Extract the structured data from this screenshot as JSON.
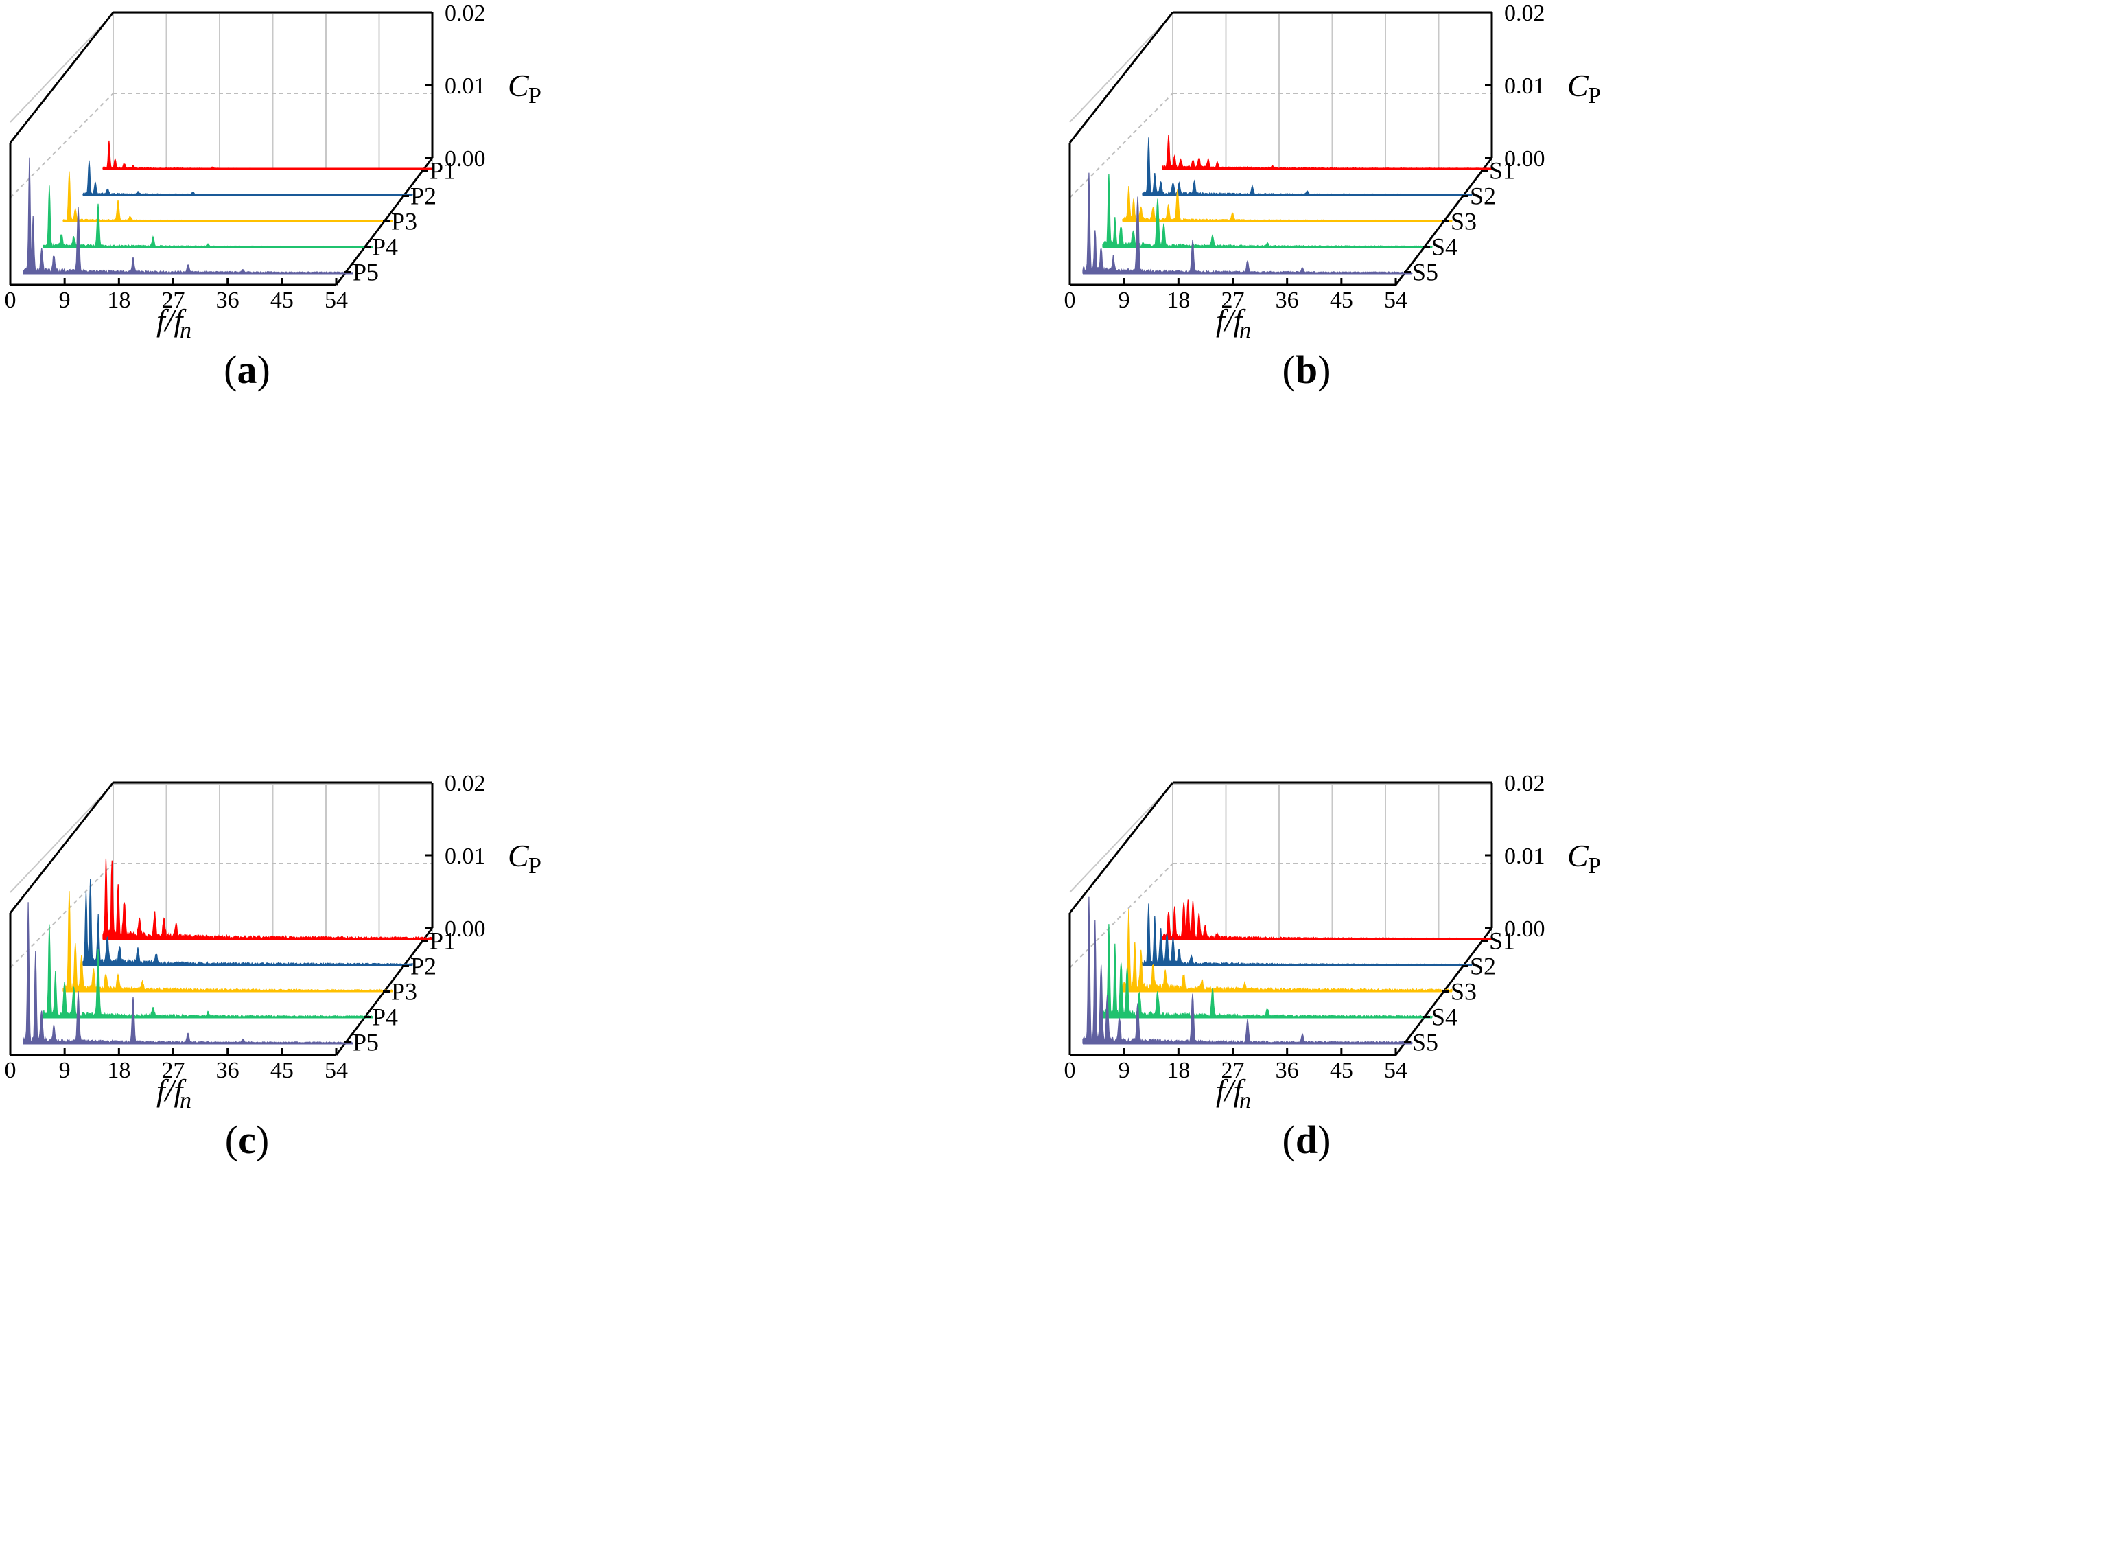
{
  "chart_data": [
    {
      "panel": "(a)",
      "caption_letter": "a",
      "type": "area",
      "subtype": "waterfall-3d-spectrum",
      "xlabel": "f/f",
      "xlabel_sub": "n",
      "zlabel": "C",
      "zlabel_sub": "P",
      "x_ticks": [
        "0",
        "9",
        "18",
        "27",
        "36",
        "45",
        "54"
      ],
      "xlim": [
        0,
        54
      ],
      "z_ticks": [
        "0.00",
        "0.01",
        "0.02"
      ],
      "zlim": [
        0,
        0.02
      ],
      "grid": true,
      "series": [
        {
          "name": "P1",
          "color": "#ff0000",
          "peaks": [
            [
              1,
              0.0035
            ],
            [
              2,
              0.0012
            ],
            [
              3.5,
              0.0006
            ],
            [
              5,
              0.0003
            ],
            [
              18,
              0.0002
            ]
          ],
          "noise": 0.00012
        },
        {
          "name": "P2",
          "color": "#1a5a98",
          "peaks": [
            [
              1,
              0.0045
            ],
            [
              2,
              0.0015
            ],
            [
              4,
              0.0007
            ],
            [
              9,
              0.0004
            ],
            [
              18,
              0.0003
            ]
          ],
          "noise": 0.00015
        },
        {
          "name": "P3",
          "color": "#ffc000",
          "peaks": [
            [
              1,
              0.0065
            ],
            [
              2,
              0.0015
            ],
            [
              9,
              0.0026
            ],
            [
              11,
              0.0005
            ]
          ],
          "noise": 0.00015
        },
        {
          "name": "P4",
          "color": "#1fc26e",
          "peaks": [
            [
              1,
              0.008
            ],
            [
              3,
              0.0015
            ],
            [
              5,
              0.0012
            ],
            [
              9,
              0.0055
            ],
            [
              18,
              0.0012
            ],
            [
              27,
              0.0003
            ]
          ],
          "noise": 0.00025
        },
        {
          "name": "P5",
          "color": "#6060a0",
          "peaks": [
            [
              1,
              0.015
            ],
            [
              1.6,
              0.007
            ],
            [
              3,
              0.003
            ],
            [
              5,
              0.002
            ],
            [
              9,
              0.0085
            ],
            [
              18,
              0.0018
            ],
            [
              27,
              0.001
            ],
            [
              36,
              0.0004
            ]
          ],
          "noise": 0.0004
        }
      ]
    },
    {
      "panel": "(b)",
      "caption_letter": "b",
      "type": "area",
      "subtype": "waterfall-3d-spectrum",
      "xlabel": "f/f",
      "xlabel_sub": "n",
      "zlabel": "C",
      "zlabel_sub": "P",
      "x_ticks": [
        "0",
        "9",
        "18",
        "27",
        "36",
        "45",
        "54"
      ],
      "xlim": [
        0,
        54
      ],
      "z_ticks": [
        "0.00",
        "0.01",
        "0.02"
      ],
      "zlim": [
        0,
        0.02
      ],
      "grid": true,
      "series": [
        {
          "name": "S1",
          "color": "#ff0000",
          "peaks": [
            [
              1,
              0.004
            ],
            [
              2,
              0.0015
            ],
            [
              3,
              0.001
            ],
            [
              5,
              0.001
            ],
            [
              6,
              0.0012
            ],
            [
              7.5,
              0.0011
            ],
            [
              9,
              0.0006
            ],
            [
              18,
              0.0003
            ]
          ],
          "noise": 0.00025
        },
        {
          "name": "S2",
          "color": "#1a5a98",
          "peaks": [
            [
              1,
              0.0075
            ],
            [
              2,
              0.0025
            ],
            [
              3,
              0.0014
            ],
            [
              5,
              0.0015
            ],
            [
              6,
              0.0014
            ],
            [
              8.5,
              0.0016
            ],
            [
              18,
              0.001
            ],
            [
              27,
              0.0004
            ]
          ],
          "noise": 0.00025
        },
        {
          "name": "S3",
          "color": "#ffc000",
          "peaks": [
            [
              1,
              0.0045
            ],
            [
              1.8,
              0.0025
            ],
            [
              3,
              0.0015
            ],
            [
              5,
              0.0017
            ],
            [
              7.5,
              0.0019
            ],
            [
              9,
              0.004
            ],
            [
              18,
              0.001
            ]
          ],
          "noise": 0.00025
        },
        {
          "name": "S4",
          "color": "#1fc26e",
          "peaks": [
            [
              1,
              0.0095
            ],
            [
              2,
              0.0035
            ],
            [
              3,
              0.0025
            ],
            [
              5,
              0.002
            ],
            [
              9,
              0.0062
            ],
            [
              10,
              0.0028
            ],
            [
              18,
              0.0014
            ],
            [
              27,
              0.0004
            ]
          ],
          "noise": 0.00035
        },
        {
          "name": "S5",
          "color": "#6060a0",
          "peaks": [
            [
              1,
              0.013
            ],
            [
              2,
              0.0055
            ],
            [
              3,
              0.003
            ],
            [
              5,
              0.0018
            ],
            [
              9,
              0.01
            ],
            [
              18,
              0.0042
            ],
            [
              27,
              0.0015
            ],
            [
              36,
              0.0006
            ]
          ],
          "noise": 0.0004
        }
      ]
    },
    {
      "panel": "(c)",
      "caption_letter": "c",
      "type": "area",
      "subtype": "waterfall-3d-spectrum",
      "xlabel": "f/f",
      "xlabel_sub": "n",
      "zlabel": "C",
      "zlabel_sub": "P",
      "x_ticks": [
        "0",
        "9",
        "18",
        "27",
        "36",
        "45",
        "54"
      ],
      "xlim": [
        0,
        54
      ],
      "z_ticks": [
        "0.00",
        "0.01",
        "0.02"
      ],
      "zlim": [
        0,
        0.02
      ],
      "grid": true,
      "series": [
        {
          "name": "P1",
          "color": "#ff0000",
          "peaks": [
            [
              0.5,
              0.0095
            ],
            [
              1.5,
              0.01
            ],
            [
              2.5,
              0.007
            ],
            [
              3.5,
              0.0045
            ],
            [
              6,
              0.0025
            ],
            [
              8.5,
              0.003
            ],
            [
              10,
              0.0025
            ],
            [
              12,
              0.0015
            ]
          ],
          "noise": 0.0006
        },
        {
          "name": "P2",
          "color": "#1a5a98",
          "peaks": [
            [
              0.5,
              0.0095
            ],
            [
              1.2,
              0.011
            ],
            [
              2.5,
              0.006
            ],
            [
              4,
              0.0035
            ],
            [
              6,
              0.0022
            ],
            [
              9,
              0.002
            ],
            [
              12,
              0.0012
            ]
          ],
          "noise": 0.0005
        },
        {
          "name": "P3",
          "color": "#ffc000",
          "peaks": [
            [
              1,
              0.013
            ],
            [
              2,
              0.006
            ],
            [
              3,
              0.004
            ],
            [
              5,
              0.0025
            ],
            [
              7,
              0.002
            ],
            [
              9,
              0.002
            ],
            [
              13,
              0.001
            ]
          ],
          "noise": 0.00045
        },
        {
          "name": "P4",
          "color": "#1fc26e",
          "peaks": [
            [
              1,
              0.012
            ],
            [
              2,
              0.0055
            ],
            [
              3.5,
              0.004
            ],
            [
              5,
              0.0035
            ],
            [
              9,
              0.0085
            ],
            [
              18,
              0.0012
            ],
            [
              27,
              0.0005
            ]
          ],
          "noise": 0.00045
        },
        {
          "name": "P5",
          "color": "#6060a0",
          "peaks": [
            [
              0.8,
              0.018
            ],
            [
              2,
              0.012
            ],
            [
              3,
              0.004
            ],
            [
              5,
              0.002
            ],
            [
              9,
              0.0065
            ],
            [
              18,
              0.006
            ],
            [
              27,
              0.0012
            ],
            [
              36,
              0.0004
            ]
          ],
          "noise": 0.0004
        }
      ]
    },
    {
      "panel": "(d)",
      "caption_letter": "d",
      "type": "area",
      "subtype": "waterfall-3d-spectrum",
      "xlabel": "f/f",
      "xlabel_sub": "n",
      "zlabel": "C",
      "zlabel_sub": "P",
      "x_ticks": [
        "0",
        "9",
        "18",
        "27",
        "36",
        "45",
        "54"
      ],
      "xlim": [
        0,
        54
      ],
      "z_ticks": [
        "0.00",
        "0.01",
        "0.02"
      ],
      "zlim": [
        0,
        0.02
      ],
      "grid": true,
      "series": [
        {
          "name": "S1",
          "color": "#ff0000",
          "peaks": [
            [
              1,
              0.0035
            ],
            [
              2,
              0.004
            ],
            [
              3.5,
              0.0045
            ],
            [
              4.2,
              0.005
            ],
            [
              5,
              0.0048
            ],
            [
              6,
              0.003
            ],
            [
              7,
              0.0015
            ],
            [
              9,
              0.0006
            ]
          ],
          "noise": 0.0003
        },
        {
          "name": "S2",
          "color": "#1a5a98",
          "peaks": [
            [
              1,
              0.008
            ],
            [
              2,
              0.006
            ],
            [
              3,
              0.0045
            ],
            [
              4,
              0.004
            ],
            [
              5,
              0.0035
            ],
            [
              6,
              0.002
            ],
            [
              8,
              0.001
            ]
          ],
          "noise": 0.0003
        },
        {
          "name": "S3",
          "color": "#ffc000",
          "peaks": [
            [
              1,
              0.0105
            ],
            [
              2,
              0.006
            ],
            [
              3,
              0.0045
            ],
            [
              5,
              0.003
            ],
            [
              7,
              0.0022
            ],
            [
              10,
              0.0018
            ],
            [
              13,
              0.0012
            ],
            [
              20,
              0.0008
            ]
          ],
          "noise": 0.0006
        },
        {
          "name": "S4",
          "color": "#1fc26e",
          "peaks": [
            [
              1,
              0.012
            ],
            [
              2,
              0.009
            ],
            [
              3,
              0.007
            ],
            [
              4,
              0.006
            ],
            [
              6,
              0.003
            ],
            [
              9,
              0.003
            ],
            [
              18,
              0.0035
            ],
            [
              27,
              0.001
            ]
          ],
          "noise": 0.0005
        },
        {
          "name": "S5",
          "color": "#6060a0",
          "peaks": [
            [
              1,
              0.019
            ],
            [
              2,
              0.016
            ],
            [
              3,
              0.01
            ],
            [
              4,
              0.006
            ],
            [
              6,
              0.003
            ],
            [
              9,
              0.005
            ],
            [
              18,
              0.0065
            ],
            [
              27,
              0.003
            ],
            [
              36,
              0.001
            ]
          ],
          "noise": 0.0005
        }
      ]
    }
  ]
}
